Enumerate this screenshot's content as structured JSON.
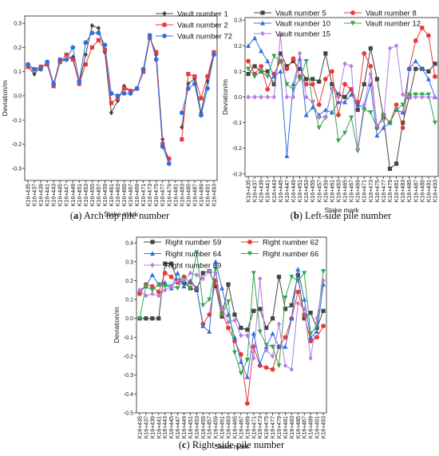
{
  "chart_data": [
    {
      "type": "line",
      "caption_letter": "(a)",
      "caption_text": "Arch top pile number",
      "xlabel": "Stake mark",
      "ylabel": "Deviation/m",
      "ylim": [
        -0.35,
        0.33
      ],
      "yticks": [
        -0.3,
        -0.2,
        -0.1,
        0.0,
        0.1,
        0.2,
        0.3
      ],
      "ytick_labels": [
        "-0.3",
        "-0.2",
        "-0.1",
        "0.0",
        "0.1",
        "0.2",
        "0.3"
      ],
      "categories": [
        "K16+435",
        "K16+437",
        "K16+439",
        "K16+441",
        "K16+443",
        "K16+445",
        "K16+447",
        "K16+449",
        "K16+451",
        "K16+453",
        "K16+455",
        "K16+457",
        "K16+459",
        "K16+461",
        "K16+463",
        "K16+465",
        "K16+467",
        "K16+469",
        "K16+471",
        "K16+473",
        "K16+475",
        "K16+477",
        "K16+479",
        "K16+481",
        "K16+483",
        "K16+485",
        "K16+487",
        "K16+489",
        "K16+491",
        "K16+493"
      ],
      "legend_position": "top-right",
      "series": [
        {
          "name": "Vault number 1",
          "color": "#444444",
          "marker": "diamond",
          "values": [
            0.12,
            0.09,
            0.12,
            0.13,
            0.05,
            0.14,
            0.15,
            0.16,
            0.05,
            0.17,
            0.29,
            0.28,
            0.18,
            -0.07,
            -0.02,
            0.04,
            0.02,
            0.03,
            0.1,
            0.24,
            0.17,
            -0.18,
            -0.28,
            null,
            -0.13,
            0.05,
            0.07,
            -0.07,
            0.06,
            0.18
          ]
        },
        {
          "name": "Vault number 2",
          "color": "#e8393b",
          "marker": "square",
          "values": [
            0.12,
            0.11,
            0.12,
            0.13,
            0.04,
            0.14,
            0.17,
            0.15,
            0.05,
            0.13,
            0.2,
            0.23,
            0.19,
            -0.03,
            -0.01,
            0.03,
            0.02,
            0.03,
            0.1,
            0.24,
            0.18,
            -0.2,
            -0.26,
            null,
            -0.18,
            0.09,
            0.08,
            -0.01,
            0.08,
            0.18
          ]
        },
        {
          "name": "Vault number 72",
          "color": "#2f6fe0",
          "marker": "circle",
          "values": [
            0.13,
            0.11,
            0.11,
            0.14,
            0.05,
            0.15,
            0.15,
            0.2,
            0.06,
            0.22,
            0.26,
            0.26,
            0.21,
            0.01,
            0.0,
            0.01,
            0.01,
            0.03,
            0.11,
            0.25,
            0.15,
            -0.21,
            -0.28,
            null,
            -0.07,
            0.03,
            0.05,
            -0.08,
            0.03,
            0.17
          ]
        }
      ]
    },
    {
      "type": "line",
      "caption_letter": "(b)",
      "caption_text": "Left-side pile number",
      "xlabel": "Stake mark",
      "ylabel": "Deviation/m",
      "ylim": [
        -0.31,
        0.31
      ],
      "yticks": [
        -0.3,
        -0.2,
        -0.1,
        0.0,
        0.1,
        0.2,
        0.3
      ],
      "ytick_labels": [
        "-0.3",
        "-0.2",
        "-0.1",
        "0.0",
        "0.1",
        "0.2",
        "0.3"
      ],
      "categories": [
        "K16+435",
        "K16+437",
        "K16+439",
        "K16+441",
        "K16+443",
        "K16+445",
        "K16+447",
        "K16+449",
        "K16+451",
        "K16+453",
        "K16+455",
        "K16+457",
        "K16+459",
        "K16+461",
        "K16+463",
        "K16+465",
        "K16+467",
        "K16+469",
        "K16+471",
        "K16+473",
        "K16+475",
        "K16+477",
        "K16+479",
        "K16+481",
        "K16+483",
        "K16+485",
        "K16+487",
        "K16+489",
        "K16+491",
        "K16+493"
      ],
      "legend_position": "top-left",
      "series": [
        {
          "name": "Vault number 5",
          "color": "#444444",
          "marker": "square",
          "values": [
            0.09,
            0.12,
            0.1,
            0.1,
            0.05,
            0.17,
            0.12,
            0.14,
            0.11,
            0.07,
            0.07,
            0.06,
            0.17,
            0.05,
            0.01,
            0.0,
            0.03,
            -0.05,
            0.05,
            0.19,
            0.07,
            -0.08,
            -0.28,
            -0.26,
            -0.1,
            0.0,
            0.11,
            0.11,
            0.1,
            0.13
          ]
        },
        {
          "name": "Vault number 8",
          "color": "#e8393b",
          "marker": "circle",
          "values": [
            0.14,
            0.09,
            0.12,
            0.03,
            0.09,
            0.14,
            0.11,
            0.15,
            0.08,
            0.05,
            0.05,
            -0.03,
            0.07,
            0.1,
            -0.07,
            0.05,
            0.03,
            -0.02,
            0.17,
            0.12,
            -0.12,
            -0.07,
            -0.1,
            -0.03,
            -0.12,
            0.11,
            0.22,
            0.27,
            0.24,
            0.08
          ]
        },
        {
          "name": "Vault number 10",
          "color": "#2f6fe0",
          "marker": "triangle",
          "values": [
            0.2,
            0.23,
            0.18,
            0.14,
            0.08,
            0.1,
            -0.23,
            0.05,
            0.15,
            -0.07,
            -0.04,
            -0.07,
            -0.05,
            -0.06,
            -0.02,
            -0.02,
            0.01,
            -0.03,
            -0.04,
            0.05,
            -0.15,
            -0.12,
            -0.1,
            -0.05,
            -0.06,
            0.11,
            0.14,
            0.11,
            0.07,
            0.0
          ]
        },
        {
          "name": "Vault number 12",
          "color": "#2ea84b",
          "marker": "triangle-down",
          "values": [
            0.11,
            0.08,
            0.1,
            0.08,
            0.16,
            0.14,
            0.05,
            0.03,
            0.07,
            0.14,
            -0.02,
            -0.12,
            -0.08,
            0.03,
            -0.17,
            -0.14,
            -0.08,
            -0.21,
            -0.05,
            -0.06,
            -0.12,
            -0.07,
            -0.1,
            -0.05,
            -0.03,
            0.01,
            0.01,
            0.01,
            0.01,
            -0.1
          ]
        },
        {
          "name": "Vault number 15",
          "color": "#b57ce0",
          "marker": "diamond",
          "values": [
            0.0,
            0.0,
            0.0,
            0.0,
            0.0,
            0.24,
            0.0,
            0.0,
            0.17,
            0.0,
            -0.02,
            -0.08,
            -0.08,
            0.03,
            0.0,
            0.13,
            0.12,
            -0.2,
            -0.03,
            0.09,
            -0.11,
            -0.09,
            0.19,
            0.2,
            0.01,
            0.0,
            0.0,
            0.0,
            0.0,
            0.0
          ]
        }
      ]
    },
    {
      "type": "line",
      "caption_letter": "(c)",
      "caption_text": "Right-side pile number",
      "xlabel": "Stake mark",
      "ylabel": "Deviation/m",
      "ylim": [
        -0.5,
        0.43
      ],
      "yticks": [
        -0.5,
        -0.4,
        -0.3,
        -0.2,
        -0.1,
        0.0,
        0.1,
        0.2,
        0.3,
        0.4
      ],
      "ytick_labels": [
        "-0.5",
        "-0.4",
        "-0.3",
        "-0.2",
        "-0.1",
        "0.0",
        "0.1",
        "0.2",
        "0.3",
        "0.4"
      ],
      "categories": [
        "K16+435",
        "K16+437",
        "K16+439",
        "K16+441",
        "K16+443",
        "K16+445",
        "K16+447",
        "K16+449",
        "K16+451",
        "K16+453",
        "K16+455",
        "K16+457",
        "K16+459",
        "K16+461",
        "K16+463",
        "K16+465",
        "K16+467",
        "K16+469",
        "K16+471",
        "K16+473",
        "K16+475",
        "K16+477",
        "K16+479",
        "K16+481",
        "K16+483",
        "K16+485",
        "K16+487",
        "K16+489",
        "K16+491",
        "K16+493"
      ],
      "legend_position": "top",
      "series": [
        {
          "name": "Right number 59",
          "color": "#444444",
          "marker": "square",
          "values": [
            0.0,
            0.0,
            0.0,
            0.0,
            0.29,
            0.29,
            0.2,
            0.19,
            0.16,
            0.15,
            0.24,
            0.25,
            0.17,
            0.01,
            0.18,
            0.02,
            -0.05,
            -0.06,
            0.04,
            0.05,
            -0.05,
            0.0,
            0.22,
            0.05,
            0.07,
            0.23,
            0.0,
            0.03,
            -0.05,
            0.04
          ]
        },
        {
          "name": "Right number 62",
          "color": "#e8393b",
          "marker": "circle",
          "values": [
            0.13,
            0.18,
            0.17,
            0.14,
            0.24,
            0.22,
            0.19,
            0.22,
            0.19,
            0.16,
            -0.03,
            0.02,
            0.2,
            0.03,
            -0.05,
            -0.12,
            -0.19,
            -0.45,
            -0.15,
            -0.25,
            -0.26,
            -0.27,
            -0.15,
            -0.1,
            0.0,
            0.14,
            0.02,
            -0.12,
            -0.1,
            -0.04
          ]
        },
        {
          "name": "Right number 64",
          "color": "#2f6fe0",
          "marker": "triangle",
          "values": [
            0.15,
            0.17,
            0.23,
            0.18,
            0.19,
            0.16,
            0.24,
            0.17,
            0.2,
            0.16,
            -0.04,
            -0.07,
            0.3,
            0.16,
            0.02,
            -0.1,
            -0.23,
            -0.31,
            -0.08,
            -0.24,
            -0.15,
            -0.08,
            -0.15,
            -0.15,
            0.0,
            0.26,
            0.1,
            -0.1,
            -0.07,
            0.18
          ]
        },
        {
          "name": "Right number 66",
          "color": "#2ea84b",
          "marker": "triangle-down",
          "values": [
            0.0,
            0.17,
            0.15,
            0.18,
            0.17,
            0.17,
            0.16,
            0.21,
            0.16,
            0.35,
            0.07,
            0.1,
            0.26,
            0.02,
            0.09,
            -0.18,
            -0.29,
            -0.22,
            0.24,
            -0.07,
            -0.14,
            -0.15,
            -0.25,
            0.11,
            0.22,
            0.2,
            0.24,
            -0.08,
            -0.04,
            0.25
          ]
        },
        {
          "name": "Right number 69",
          "color": "#b57ce0",
          "marker": "diamond",
          "values": [
            0.15,
            0.12,
            0.13,
            0.12,
            0.15,
            0.17,
            0.2,
            0.2,
            0.24,
            0.23,
            0.21,
            0.25,
            0.24,
            0.06,
            -0.02,
            -0.01,
            -0.09,
            -0.09,
            -0.21,
            0.21,
            -0.17,
            -0.2,
            -0.03,
            -0.25,
            -0.27,
            0.08,
            0.05,
            -0.21,
            0.0,
            0.2
          ]
        }
      ]
    }
  ]
}
